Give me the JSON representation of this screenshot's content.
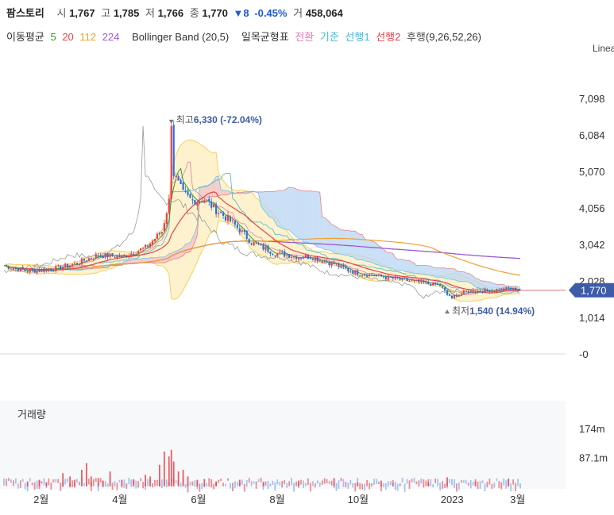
{
  "header": {
    "name": "팜스토리",
    "open_label": "시",
    "open": "1,767",
    "high_label": "고",
    "high": "1,785",
    "low_label": "저",
    "low": "1,766",
    "close_label": "종",
    "close": "1,770",
    "change": "▼8",
    "change_pct": "-0.45%",
    "volume_label": "거",
    "volume": "458,064"
  },
  "indicators": {
    "ma_label": "이동평균",
    "ma_periods": [
      "5",
      "20",
      "112",
      "224"
    ],
    "bollinger": "Bollinger Band (20,5)",
    "ichimoku_label": "일목균형표",
    "ichimoku_lines": [
      "전환",
      "기준",
      "선행1",
      "선행2",
      "후행"
    ],
    "ichimoku_params": "(9,26,52,26)"
  },
  "scale_label": "Linea",
  "colors": {
    "up": "#e8434a",
    "down": "#2a6fe0",
    "ma5": "#2ca02c",
    "ma20": "#e8434a",
    "ma112": "#f0a030",
    "ma224": "#9b59d0",
    "bb_fill": "#fdf0c4",
    "bb_line": "#f5cf5e",
    "tenkan": "#e87ab4",
    "kijun": "#48b7d8",
    "span1": "#6ec5e8",
    "span2": "#e8434a",
    "chikou": "#999999",
    "cloud_up": "#f3c3c9",
    "cloud_down": "#bcd7f3",
    "price_tag": "#3e5ba8"
  },
  "chart_data": {
    "type": "candlestick",
    "price_axis": {
      "ticks": [
        0,
        1014,
        2028,
        3042,
        4056,
        5070,
        6084,
        7098
      ],
      "tick_labels": [
        "-0",
        "1,014",
        "2,028",
        "3,042",
        "4,056",
        "5,070",
        "6,084",
        "7,098"
      ],
      "range": [
        0,
        7600
      ]
    },
    "time_axis": {
      "labels": [
        "2월",
        "4월",
        "6월",
        "8월",
        "10월",
        "2023",
        "3월"
      ]
    },
    "annotations": {
      "high_label": "최고",
      "high_value": "6,330",
      "high_pct": "(-72.04%)",
      "low_label": "최저",
      "low_value": "1,540",
      "low_pct": "(14.94%)"
    },
    "current_price": {
      "label": "1,770",
      "value": 1770
    },
    "series": {
      "price_path": [
        [
          0,
          2450
        ],
        [
          10,
          2300
        ],
        [
          20,
          2350
        ],
        [
          30,
          2500
        ],
        [
          40,
          2750
        ],
        [
          50,
          2700
        ],
        [
          60,
          2950
        ],
        [
          67,
          3400
        ],
        [
          70,
          4250
        ],
        [
          71,
          6330
        ],
        [
          72,
          5000
        ],
        [
          76,
          4450
        ],
        [
          80,
          4250
        ],
        [
          85,
          4300
        ],
        [
          90,
          4000
        ],
        [
          95,
          3750
        ],
        [
          100,
          3450
        ],
        [
          105,
          3100
        ],
        [
          110,
          2950
        ],
        [
          115,
          2800
        ],
        [
          120,
          2750
        ],
        [
          125,
          2700
        ],
        [
          130,
          2700
        ],
        [
          135,
          2600
        ],
        [
          140,
          2500
        ],
        [
          145,
          2350
        ],
        [
          150,
          2250
        ],
        [
          155,
          2200
        ],
        [
          160,
          2150
        ],
        [
          165,
          2100
        ],
        [
          170,
          2050
        ],
        [
          175,
          2000
        ],
        [
          180,
          1950
        ],
        [
          185,
          1900
        ],
        [
          188,
          1640
        ],
        [
          190,
          1600
        ],
        [
          195,
          1700
        ],
        [
          200,
          1740
        ],
        [
          205,
          1760
        ],
        [
          210,
          1790
        ],
        [
          215,
          1810
        ],
        [
          219,
          1770
        ]
      ]
    },
    "volume": {
      "ticks": [
        {
          "label": "174m",
          "value": 174
        },
        {
          "label": "87.1m",
          "value": 87.1
        }
      ],
      "panel_label": "거래량",
      "bars": [
        [
          10,
          30
        ],
        [
          15,
          40
        ],
        [
          18,
          25
        ],
        [
          25,
          80
        ],
        [
          28,
          60
        ],
        [
          30,
          40
        ],
        [
          33,
          100
        ],
        [
          35,
          140
        ],
        [
          37,
          60
        ],
        [
          40,
          50
        ],
        [
          42,
          35
        ],
        [
          45,
          90
        ],
        [
          50,
          40
        ],
        [
          55,
          40
        ],
        [
          60,
          70
        ],
        [
          62,
          60
        ],
        [
          66,
          130
        ],
        [
          68,
          210
        ],
        [
          70,
          180
        ],
        [
          71,
          220
        ],
        [
          72,
          150
        ],
        [
          74,
          90
        ],
        [
          76,
          100
        ],
        [
          78,
          60
        ],
        [
          82,
          40
        ],
        [
          85,
          45
        ],
        [
          90,
          30
        ],
        [
          100,
          40
        ],
        [
          110,
          25
        ],
        [
          125,
          35
        ],
        [
          140,
          50
        ],
        [
          150,
          25
        ],
        [
          160,
          35
        ],
        [
          165,
          20
        ],
        [
          180,
          25
        ],
        [
          188,
          55
        ],
        [
          200,
          30
        ],
        [
          214,
          45
        ]
      ]
    }
  }
}
